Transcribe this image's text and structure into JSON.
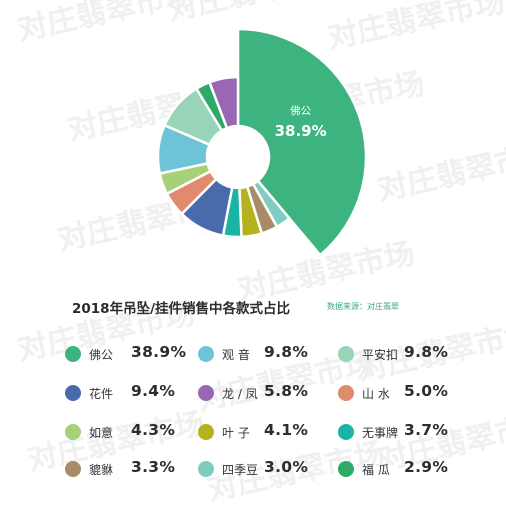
{
  "watermark": {
    "text": "对庄翡翠市场"
  },
  "chart_data": {
    "type": "pie",
    "style": "donut",
    "title": "2018年吊坠/挂件销售中各款式占比",
    "source": "数据来源：对庄翡翠",
    "highlight_slice": 0,
    "start_angle_deg": 0,
    "slices": [
      {
        "label": "佛公",
        "display_label": "佛公",
        "value": 38.9,
        "display": "38.9%",
        "color": "#3db37f"
      },
      {
        "label": "四季豆",
        "display_label": "四季豆",
        "value": 3.0,
        "display": "3.0%",
        "color": "#7fccc0"
      },
      {
        "label": "貔貅",
        "display_label": "貔貅",
        "value": 3.3,
        "display": "3.3%",
        "color": "#a88c6a"
      },
      {
        "label": "叶子",
        "display_label": "叶 子",
        "value": 4.1,
        "display": "4.1%",
        "color": "#b5b21f"
      },
      {
        "label": "无事牌",
        "display_label": "无事牌",
        "value": 3.7,
        "display": "3.7%",
        "color": "#1bb3a3"
      },
      {
        "label": "花件",
        "display_label": "花件",
        "value": 9.4,
        "display": "9.4%",
        "color": "#4a6aae"
      },
      {
        "label": "山水",
        "display_label": "山 水",
        "value": 5.0,
        "display": "5.0%",
        "color": "#e08a6e"
      },
      {
        "label": "如意",
        "display_label": "如意",
        "value": 4.3,
        "display": "4.3%",
        "color": "#a5d178"
      },
      {
        "label": "观音",
        "display_label": "观 音",
        "value": 9.8,
        "display": "9.8%",
        "color": "#6ec3d6"
      },
      {
        "label": "平安扣",
        "display_label": "平安扣",
        "value": 9.8,
        "display": "9.8%",
        "color": "#98d4b8"
      },
      {
        "label": "福瓜",
        "display_label": "福 瓜",
        "value": 2.9,
        "display": "2.9%",
        "color": "#2faa66"
      },
      {
        "label": "龙/凤",
        "display_label": "龙 / 凤",
        "value": 5.8,
        "display": "5.8%",
        "color": "#9968b4"
      }
    ],
    "legend_order": [
      "佛公",
      "观音",
      "平安扣",
      "花件",
      "龙/凤",
      "山水",
      "如意",
      "叶子",
      "无事牌",
      "貔貅",
      "四季豆",
      "福瓜"
    ]
  }
}
